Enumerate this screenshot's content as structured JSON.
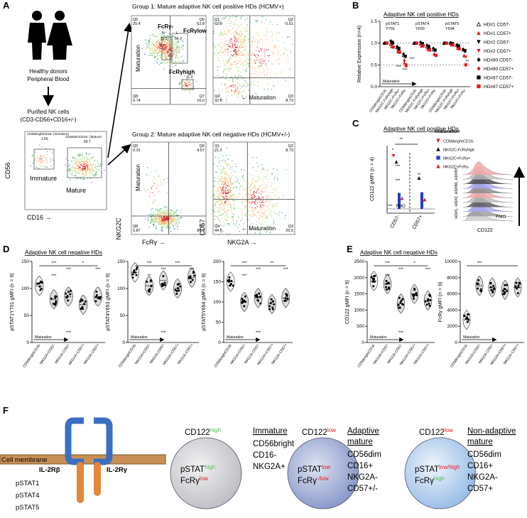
{
  "panel_labels": [
    "A",
    "B",
    "C",
    "D",
    "E",
    "F"
  ],
  "panel_a": {
    "donor_caption": [
      "Healthy donors",
      "Peripheral Blood"
    ],
    "purified": [
      "Purified NK cells",
      "(CD3-CD56+CD16+/-)"
    ],
    "overview": {
      "gates": [
        {
          "label": "CD56brightCD16- (Immature)",
          "value": "1.65"
        },
        {
          "label": "CD56dimCD16+ (Mature)",
          "value": "69.7"
        }
      ],
      "populations": [
        "Immature",
        "Mature"
      ],
      "x_label": "CD16 →",
      "y_label": "CD56"
    },
    "group1_title": "Group 1: Mature adaptive NK cell positive HDs (HCMV+)",
    "group2_title": "Group 2: Mature adaptive NK cell negative HDs (HCMV+/-)",
    "plots": [
      {
        "quadrants": [
          [
            "Q5",
            "20.4"
          ],
          [
            "Q6",
            "62.8"
          ],
          [
            "Q8",
            "0.74"
          ],
          [
            "Q7",
            "16.0"
          ]
        ],
        "gates": [
          [
            "N",
            "19.1"
          ],
          [
            "L",
            "54.3"
          ]
        ],
        "labels": [
          "FcRγ-",
          "FcRγlow",
          "FcRγhigh",
          "11.0"
        ],
        "axis_label": "Maturation"
      },
      {
        "quadrants": [
          [
            "Q1",
            "62.9"
          ],
          [
            "Q2",
            "5.51"
          ],
          [
            "Q4",
            "32.8"
          ],
          [
            "Q3",
            "8.73"
          ]
        ],
        "axis_label": "← Maturation"
      },
      {
        "quadrants": [
          [
            "Q5",
            "0.31"
          ],
          [
            "Q6",
            "4.57"
          ],
          [
            "Q8",
            "5.87"
          ],
          [
            "Q7",
            "89.3"
          ]
        ],
        "axis_label": "Maturation",
        "x_label": "FcRγ →",
        "y_label": "NKG2C"
      },
      {
        "quadrants": [
          [
            "Q1",
            "21.2"
          ],
          [
            "Q2",
            "8.73"
          ],
          [
            "Q4",
            "44.6"
          ],
          [
            "Q3",
            "25.5"
          ]
        ],
        "axis_label": "← Maturation",
        "x_label": "NKG2A →",
        "y_label": "CD57"
      }
    ]
  },
  "chart_data": [
    {
      "type": "scatter",
      "title": "Adaptive NK cell positive HDs",
      "y_label": "Relative Expression (n=4)",
      "x_note": "Maturation",
      "group_labels": [
        [
          "pSTAT1",
          "Y701"
        ],
        [
          "pSTAT4",
          "Y693"
        ],
        [
          "pSTAT5",
          "Y694"
        ]
      ],
      "categories": [
        "CD56brightCD16-",
        "NKG2C-FcRγhigh",
        "NKG2C+FcRγ+",
        "NKG2C+FcRγ-",
        "CD56brightCD16-",
        "NKG2C-FcRγhigh",
        "NKG2C+FcRγ+",
        "NKG2C+FcRγ-",
        "CD56brightCD16-",
        "NKG2C-FcRγhigh",
        "NKG2C+FcRγ+",
        "NKG2C+FcRγ-"
      ],
      "ylim": [
        0,
        1.5
      ],
      "yticks": [
        {
          "value": 0,
          "label": "0.0"
        },
        {
          "value": 0.5,
          "label": "0.5"
        },
        {
          "value": 1,
          "label": "1.0"
        },
        {
          "value": 1.5,
          "label": "1.5"
        }
      ],
      "reference_lines": [
        1,
        0.5
      ],
      "annotations": [
        "***",
        "***",
        "***",
        "**"
      ],
      "series": [
        {
          "name": "HD#1 CD57-",
          "color": "#000000",
          "marker": "triangle-open",
          "values": [
            1.0,
            0.98,
            0.9,
            0.72,
            1.0,
            0.98,
            0.92,
            0.85,
            1.0,
            1.0,
            0.95,
            0.85
          ]
        },
        {
          "name": "HD#1 CD57+",
          "color": "#e41a1c",
          "marker": "triangle",
          "values": [
            1.0,
            0.92,
            0.8,
            0.55,
            1.0,
            0.93,
            0.86,
            0.75,
            1.0,
            0.96,
            0.88,
            0.72
          ]
        },
        {
          "name": "HD#2 CD57-",
          "color": "#000000",
          "marker": "triangle-down",
          "values": [
            1.0,
            1.02,
            0.88,
            0.68,
            1.0,
            0.97,
            0.93,
            0.82,
            1.0,
            0.99,
            0.94,
            0.8
          ]
        },
        {
          "name": "HD#2 CD57+",
          "color": "#e41a1c",
          "marker": "triangle-down",
          "values": [
            1.0,
            0.9,
            0.78,
            0.5,
            1.0,
            0.92,
            0.85,
            0.7,
            1.0,
            0.95,
            0.86,
            0.68
          ]
        },
        {
          "name": "HD#80 CD57-",
          "color": "#000000",
          "marker": "diamond",
          "values": [
            1.0,
            1.05,
            0.92,
            0.75,
            1.0,
            1.02,
            0.95,
            0.88,
            1.0,
            1.01,
            0.96,
            0.86
          ]
        },
        {
          "name": "HD#80 CD57+",
          "color": "#e41a1c",
          "marker": "diamond",
          "values": [
            1.0,
            0.94,
            0.82,
            0.6,
            1.0,
            0.95,
            0.88,
            0.74,
            1.0,
            0.97,
            0.89,
            0.7
          ]
        },
        {
          "name": "HD#87 CD57-",
          "color": "#000000",
          "marker": "square",
          "values": [
            1.0,
            1.0,
            0.87,
            0.7,
            1.0,
            0.99,
            0.91,
            0.84,
            1.0,
            0.99,
            0.93,
            0.83
          ]
        },
        {
          "name": "HD#87 CD57+",
          "color": "#e41a1c",
          "marker": "square",
          "values": [
            1.0,
            0.91,
            0.79,
            0.48,
            1.0,
            0.94,
            0.84,
            0.72,
            1.0,
            0.96,
            0.87,
            0.5
          ]
        }
      ]
    },
    {
      "type": "dot",
      "title": "Adaptive NK cell positive HDs",
      "y_label": "CD122 gMFI (n = 4)",
      "legend_title": "Maturation",
      "categories": [
        "CD57-",
        "CD57+"
      ],
      "ylim": [
        0,
        10000
      ],
      "annotations": [
        "**",
        "*",
        "***",
        "***",
        "**",
        "***",
        "FMO"
      ],
      "series": [
        {
          "name": "CD56brightCD16-",
          "color": "#e41a1c",
          "marker": "triangle-down",
          "values": [
            8500,
            null
          ]
        },
        {
          "name": "NKG2C-FcRγhigh",
          "color": "#000000",
          "marker": "triangle",
          "values": [
            7600,
            5200
          ]
        },
        {
          "name": "NKG2C+FcRγ+",
          "color": "#1f3fbf",
          "marker": "square",
          "values": [
            3000,
            3100
          ]
        },
        {
          "name": "NKG2C+FcRγ-",
          "color": "#e41a1c",
          "marker": "triangle",
          "values": [
            2200,
            2000
          ]
        }
      ],
      "histogram": {
        "samples": "HD#1, HD#2, HD#80, HD#87",
        "fmo": "FMO",
        "x_label": "CD122"
      }
    },
    {
      "type": "violin",
      "title": "Adaptive NK cell negative HDs",
      "y_label": "pSTAT1Y701 gMFI (n = 9)",
      "x_note": "Maturation",
      "categories": [
        "CD56brightCD16-",
        "NKG2A+CD57-",
        "NKG2A-CD57-",
        "NKG2A+CD57+",
        "NKG2A-CD57+"
      ],
      "values": [
        105,
        80,
        85,
        70,
        85
      ],
      "ylim": [
        0,
        150
      ],
      "yticks": [
        0,
        50,
        100,
        150
      ],
      "annotations": [
        "***",
        "***",
        "*",
        "***",
        "***",
        "***"
      ]
    },
    {
      "type": "violin",
      "y_label": "pSTAT4Y693 gMFI (n = 9)",
      "x_note": "Maturation",
      "categories": [
        "CD56brightCD16-",
        "NKG2A+CD57-",
        "NKG2A-CD57-",
        "NKG2A+CD57+",
        "NKG2A-CD57+"
      ],
      "values": [
        130,
        105,
        115,
        100,
        120
      ],
      "ylim": [
        0,
        150
      ],
      "yticks": [
        0,
        50,
        100,
        150
      ],
      "annotations": [
        "***",
        "***",
        "***",
        "***",
        "**",
        "***"
      ]
    },
    {
      "type": "violin",
      "y_label": "pSTAT5Y694 gMFI (n = 9)",
      "x_note": "Maturation",
      "categories": [
        "CD56brightCD16-",
        "NKG2A+CD57-",
        "NKG2A-CD57-",
        "NKG2A+CD57+",
        "NKG2A-CD57+"
      ],
      "values": [
        150,
        100,
        110,
        95,
        110
      ],
      "ylim": [
        0,
        200
      ],
      "yticks": [
        0,
        50,
        100,
        150,
        200
      ],
      "annotations": [
        "***",
        "***",
        "**",
        "***",
        "***",
        "***"
      ]
    },
    {
      "type": "violin",
      "title": "Adaptive NK cell negative HDs",
      "y_label": "CD122 gMFI (n = 9)",
      "x_note": "Maturation",
      "categories": [
        "CD56brightCD16-",
        "NKG2A+CD57-",
        "NKG2A-CD57-",
        "NKG2A+CD57+",
        "NKG2A-CD57+"
      ],
      "values": [
        1900,
        1800,
        1200,
        1500,
        1300
      ],
      "ylim": [
        0,
        2500
      ],
      "yticks": [
        0,
        500,
        1000,
        1500,
        2000,
        2500
      ],
      "annotations": [
        "***",
        "***",
        "*",
        "***",
        "***",
        "***"
      ]
    },
    {
      "type": "violin",
      "y_label": "FcRγ gMFI (n = 9)",
      "x_note": "Maturation",
      "categories": [
        "CD56brightCD16-",
        "NKG2A+CD57-",
        "NKG2A-CD57-",
        "NKG2A+CD57+",
        "NKG2A-CD57+"
      ],
      "values": [
        2800,
        7000,
        6800,
        6500,
        6800
      ],
      "ylim": [
        0,
        10000
      ],
      "yticks": [
        0,
        2000,
        4000,
        6000,
        8000,
        10000
      ],
      "annotations": [
        "***"
      ]
    }
  ],
  "panel_f": {
    "membrane": "Cell membrane",
    "receptors": [
      "IL-2Rβ",
      "IL-2Rγ"
    ],
    "signals": [
      "pSTAT1",
      "pSTAT4",
      "pSTAT5"
    ],
    "cells": [
      {
        "cd122": "CD122",
        "cd122_level": {
          "text": "high",
          "color": "#5cb85c"
        },
        "pstat": "pSTAT",
        "pstat_level": {
          "text": "high",
          "color": "#5cb85c"
        },
        "fcr": "FcRγ",
        "fcr_level": {
          "text": "low",
          "color": "#e41a1c"
        },
        "title": [
          "Immature"
        ],
        "markers": [
          "CD56bright",
          "CD16-",
          "NKG2A+"
        ]
      },
      {
        "cd122": "CD122",
        "cd122_level": {
          "text": "low",
          "color": "#e41a1c"
        },
        "pstat": "pSTAT",
        "pstat_level": {
          "text": "low",
          "color": "#e41a1c"
        },
        "fcr": "FcRγ",
        "fcr_level": {
          "text": "-/low",
          "color": "#e41a1c"
        },
        "title": [
          "Adaptive",
          "mature"
        ],
        "markers": [
          "CD56dim",
          "CD16+",
          "NKG2A-",
          "CD57+/-"
        ]
      },
      {
        "cd122": "CD122",
        "cd122_level": {
          "text": "low",
          "color": "#e41a1c"
        },
        "pstat": "pSTAT",
        "pstat_level": {
          "text": "low/high",
          "color": "#e41a1c"
        },
        "fcr": "FcRγ",
        "fcr_level": {
          "text": "high",
          "color": "#5cb85c"
        },
        "title": [
          "Non-adaptive",
          "mature"
        ],
        "markers": [
          "CD56dim",
          "CD16+",
          "NKG2A-",
          "CD57+"
        ]
      }
    ]
  }
}
